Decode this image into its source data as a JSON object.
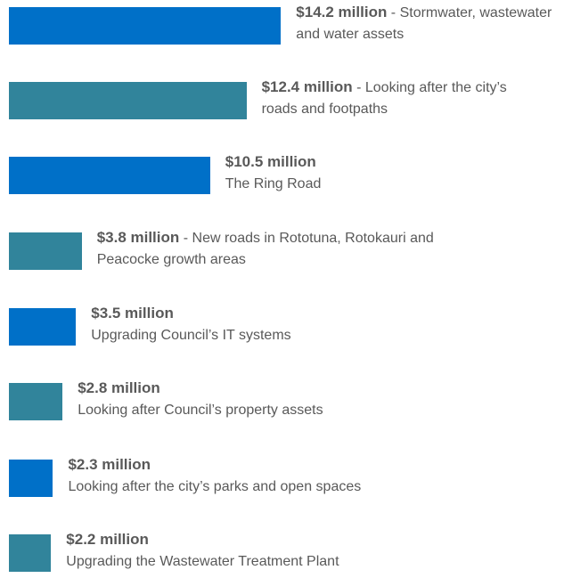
{
  "chart_data": {
    "type": "bar",
    "categories": [
      "- Stormwater, wastewater and water assets",
      "- Looking after the city’s roads and footpaths",
      "The Ring Road",
      "- New roads in Rototuna, Rotokauri and Peacocke growth areas",
      "Upgrading Council’s IT systems",
      "Looking after Council’s property assets",
      "Looking after the city’s parks and open spaces",
      "Upgrading the Wastewater Treatment Plant"
    ],
    "values": [
      14.2,
      12.4,
      10.5,
      3.8,
      3.5,
      2.8,
      2.3,
      2.2
    ],
    "value_labels": [
      "$14.2 million",
      "$12.4 million",
      "$10.5 million",
      "$3.8 million",
      "$3.5 million",
      "$2.8 million",
      "$2.3 million",
      "$2.2 million"
    ],
    "colors": [
      "#0070c8",
      "#31849b",
      "#0070c8",
      "#31849b",
      "#0070c8",
      "#31849b",
      "#0070c8",
      "#31849b"
    ]
  }
}
